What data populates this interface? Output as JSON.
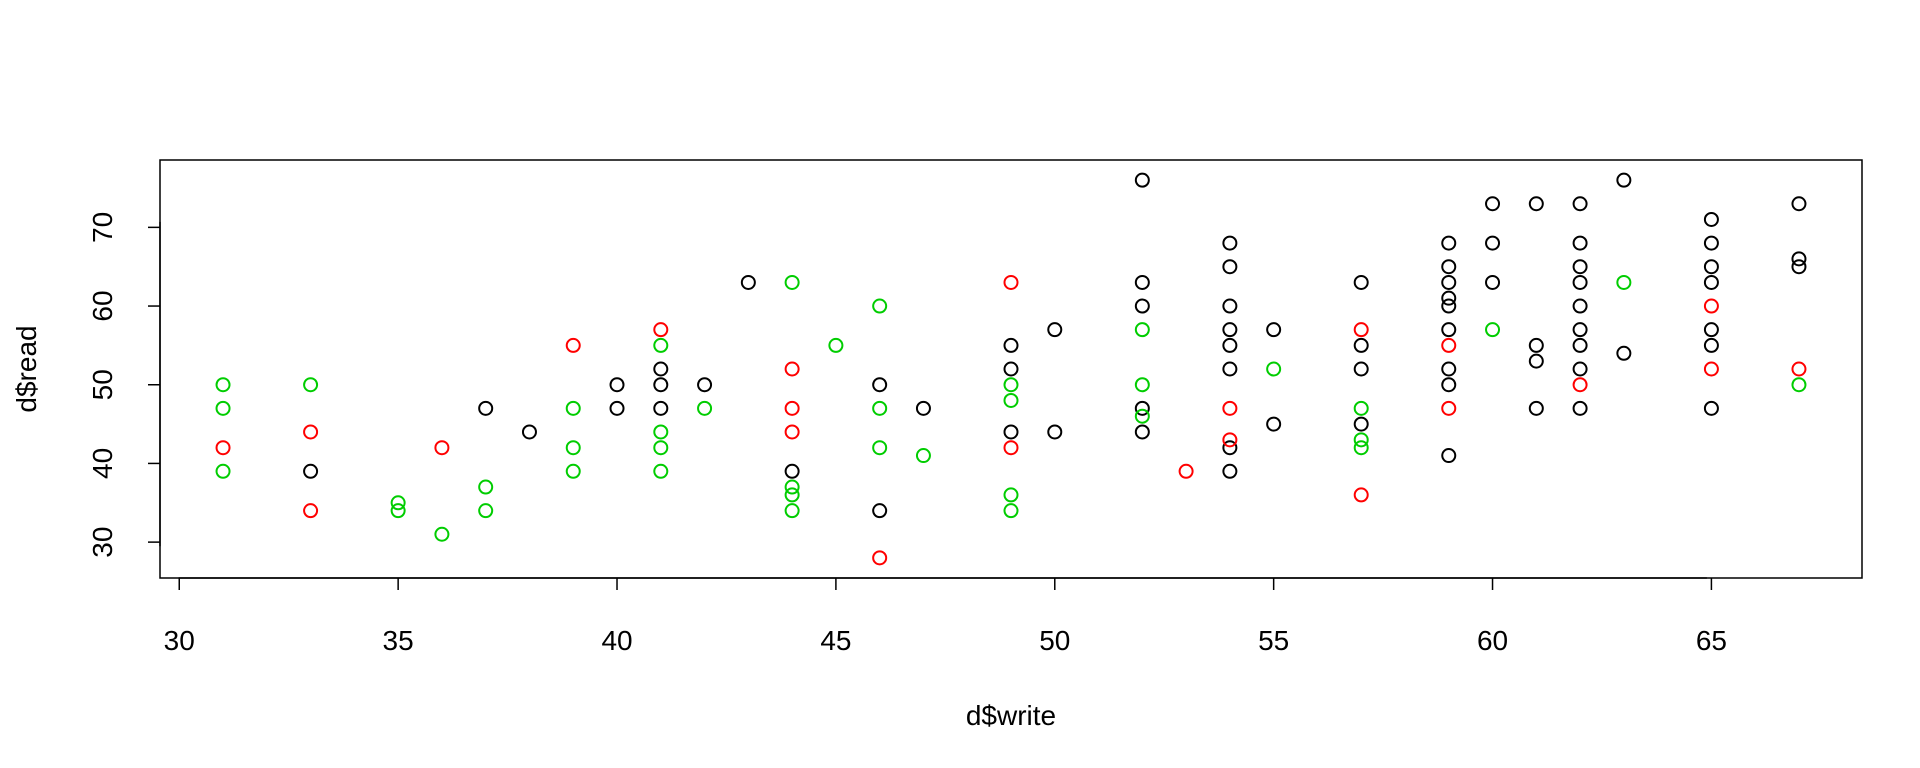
{
  "chart_data": {
    "type": "scatter",
    "title": "",
    "xlabel": "d$write",
    "ylabel": "d$read",
    "xlim": [
      29.56,
      68.44
    ],
    "ylim": [
      25.44,
      78.56
    ],
    "xticks": [
      "30",
      "35",
      "40",
      "45",
      "50",
      "55",
      "60",
      "65"
    ],
    "yticks": [
      "30",
      "40",
      "50",
      "60",
      "70"
    ],
    "grid": false,
    "legend": "none",
    "colors": {
      "black": "#000000",
      "red": "#ff0000",
      "green": "#00cd00"
    },
    "series": [
      {
        "color": "black",
        "points": [
          [
            33,
            39
          ],
          [
            37,
            47
          ],
          [
            38,
            44
          ],
          [
            40,
            50
          ],
          [
            40,
            47
          ],
          [
            41,
            52
          ],
          [
            41,
            50
          ],
          [
            41,
            47
          ],
          [
            42,
            50
          ],
          [
            43,
            63
          ],
          [
            44,
            39
          ],
          [
            46,
            50
          ],
          [
            46,
            34
          ],
          [
            47,
            47
          ],
          [
            49,
            55
          ],
          [
            49,
            52
          ],
          [
            49,
            44
          ],
          [
            50,
            57
          ],
          [
            50,
            44
          ],
          [
            52,
            76
          ],
          [
            52,
            63
          ],
          [
            52,
            60
          ],
          [
            52,
            47
          ],
          [
            52,
            44
          ],
          [
            54,
            68
          ],
          [
            54,
            65
          ],
          [
            54,
            60
          ],
          [
            54,
            57
          ],
          [
            54,
            55
          ],
          [
            54,
            52
          ],
          [
            54,
            42
          ],
          [
            54,
            39
          ],
          [
            55,
            57
          ],
          [
            55,
            45
          ],
          [
            57,
            63
          ],
          [
            57,
            55
          ],
          [
            57,
            52
          ],
          [
            57,
            45
          ],
          [
            59,
            68
          ],
          [
            59,
            65
          ],
          [
            59,
            63
          ],
          [
            59,
            61
          ],
          [
            59,
            60
          ],
          [
            59,
            57
          ],
          [
            59,
            52
          ],
          [
            59,
            50
          ],
          [
            59,
            41
          ],
          [
            60,
            73
          ],
          [
            60,
            68
          ],
          [
            60,
            63
          ],
          [
            61,
            73
          ],
          [
            61,
            55
          ],
          [
            61,
            53
          ],
          [
            61,
            47
          ],
          [
            62,
            73
          ],
          [
            62,
            68
          ],
          [
            62,
            65
          ],
          [
            62,
            63
          ],
          [
            62,
            60
          ],
          [
            62,
            57
          ],
          [
            62,
            55
          ],
          [
            62,
            52
          ],
          [
            62,
            47
          ],
          [
            63,
            76
          ],
          [
            63,
            54
          ],
          [
            65,
            71
          ],
          [
            65,
            68
          ],
          [
            65,
            65
          ],
          [
            65,
            63
          ],
          [
            65,
            57
          ],
          [
            65,
            55
          ],
          [
            65,
            47
          ],
          [
            67,
            73
          ],
          [
            67,
            66
          ],
          [
            67,
            65
          ]
        ]
      },
      {
        "color": "red",
        "points": [
          [
            31,
            42
          ],
          [
            33,
            44
          ],
          [
            33,
            34
          ],
          [
            36,
            42
          ],
          [
            39,
            55
          ],
          [
            41,
            57
          ],
          [
            44,
            52
          ],
          [
            44,
            47
          ],
          [
            44,
            44
          ],
          [
            46,
            28
          ],
          [
            49,
            63
          ],
          [
            49,
            42
          ],
          [
            53,
            39
          ],
          [
            54,
            47
          ],
          [
            54,
            43
          ],
          [
            57,
            57
          ],
          [
            57,
            36
          ],
          [
            59,
            55
          ],
          [
            59,
            47
          ],
          [
            62,
            50
          ],
          [
            65,
            60
          ],
          [
            65,
            52
          ],
          [
            67,
            52
          ]
        ]
      },
      {
        "color": "green",
        "points": [
          [
            31,
            50
          ],
          [
            31,
            47
          ],
          [
            31,
            39
          ],
          [
            33,
            50
          ],
          [
            35,
            35
          ],
          [
            35,
            34
          ],
          [
            36,
            31
          ],
          [
            37,
            37
          ],
          [
            37,
            34
          ],
          [
            39,
            47
          ],
          [
            39,
            42
          ],
          [
            39,
            39
          ],
          [
            41,
            55
          ],
          [
            41,
            44
          ],
          [
            41,
            42
          ],
          [
            41,
            39
          ],
          [
            42,
            47
          ],
          [
            44,
            63
          ],
          [
            44,
            37
          ],
          [
            44,
            36
          ],
          [
            44,
            34
          ],
          [
            45,
            55
          ],
          [
            46,
            60
          ],
          [
            46,
            47
          ],
          [
            46,
            42
          ],
          [
            47,
            41
          ],
          [
            49,
            50
          ],
          [
            49,
            48
          ],
          [
            49,
            36
          ],
          [
            49,
            34
          ],
          [
            52,
            57
          ],
          [
            52,
            50
          ],
          [
            52,
            46
          ],
          [
            55,
            52
          ],
          [
            57,
            47
          ],
          [
            57,
            43
          ],
          [
            57,
            42
          ],
          [
            60,
            57
          ],
          [
            63,
            63
          ],
          [
            67,
            50
          ]
        ]
      }
    ]
  }
}
